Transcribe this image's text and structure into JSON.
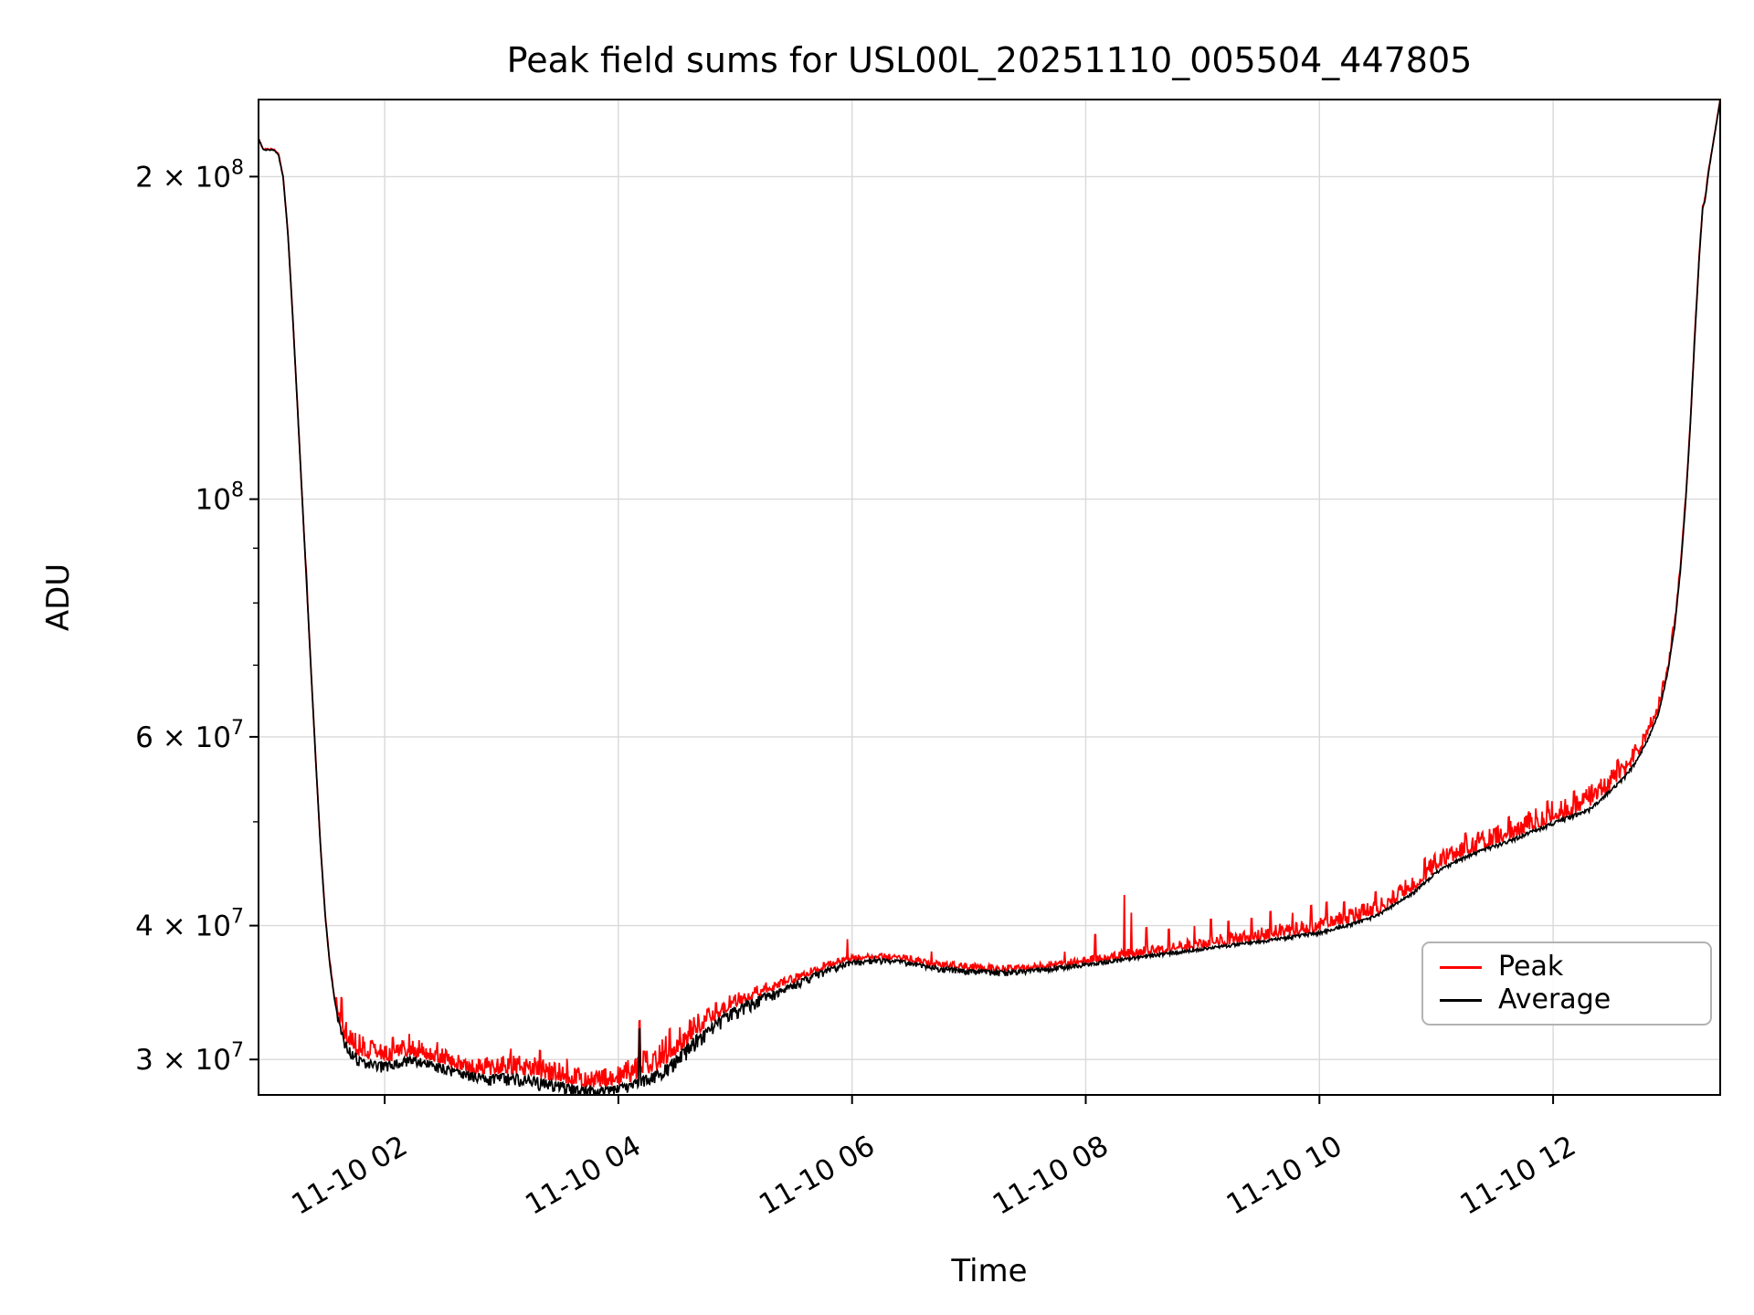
{
  "chart_data": {
    "type": "line",
    "title": "Peak field sums for USL00L_20251110_005504_447805",
    "xlabel": "Time",
    "ylabel": "ADU",
    "yscale": "log",
    "grid": true,
    "legend_position": "lower right",
    "ylim": [
      27800000.0,
      236000000.0
    ],
    "x_range_hours": [
      0.92,
      13.43
    ],
    "sample_step_hours": 0.006,
    "colors": {
      "grid": "#d9d9d9",
      "axis": "#000000",
      "background": "#ffffff",
      "peak": "#ff0000",
      "average": "#000000"
    },
    "x_ticks": [
      {
        "hours": 2,
        "label": "11-10 02"
      },
      {
        "hours": 4,
        "label": "11-10 04"
      },
      {
        "hours": 6,
        "label": "11-10 06"
      },
      {
        "hours": 8,
        "label": "11-10 08"
      },
      {
        "hours": 10,
        "label": "11-10 10"
      },
      {
        "hours": 12,
        "label": "11-10 12"
      }
    ],
    "y_ticks": [
      {
        "value": 30000000.0,
        "mantissa": "3 × 10",
        "exponent": "7"
      },
      {
        "value": 40000000.0,
        "mantissa": "4 × 10",
        "exponent": "7"
      },
      {
        "value": 60000000.0,
        "mantissa": "6 × 10",
        "exponent": "7"
      },
      {
        "value": 100000000.0,
        "mantissa": "10",
        "exponent": "8"
      },
      {
        "value": 200000000.0,
        "mantissa": "2 × 10",
        "exponent": "8"
      }
    ],
    "y_minor_ticks": [
      50000000.0,
      70000000.0,
      80000000.0,
      90000000.0
    ],
    "series": [
      {
        "name": "Peak",
        "color": "#ff0000"
      },
      {
        "name": "Average",
        "color": "#000000"
      }
    ],
    "baseline": {
      "x": [
        0.92,
        0.96,
        1.0,
        1.05,
        1.09,
        1.13,
        1.17,
        1.21,
        1.25,
        1.29,
        1.33,
        1.37,
        1.41,
        1.45,
        1.49,
        1.53,
        1.57,
        1.61,
        1.66,
        1.72,
        1.8,
        1.9,
        2.0,
        2.1,
        2.2,
        2.3,
        2.4,
        2.5,
        2.6,
        2.7,
        2.8,
        2.9,
        3.0,
        3.1,
        3.2,
        3.3,
        3.4,
        3.5,
        3.6,
        3.7,
        3.8,
        3.9,
        4.0,
        4.1,
        4.2,
        4.35,
        4.5,
        4.65,
        4.8,
        4.95,
        5.1,
        5.25,
        5.4,
        5.6,
        5.8,
        6.0,
        6.2,
        6.45,
        6.7,
        7.0,
        7.3,
        7.6,
        8.0,
        8.4,
        8.8,
        9.2,
        9.6,
        10.0,
        10.3,
        10.5,
        10.65,
        10.8,
        11.0,
        11.2,
        11.4,
        11.6,
        11.8,
        12.0,
        12.15,
        12.3,
        12.4,
        12.5,
        12.6,
        12.7,
        12.8,
        12.9,
        12.98,
        13.04,
        13.09,
        13.13,
        13.17,
        13.21,
        13.25,
        13.28,
        13.3,
        13.33,
        13.37,
        13.4,
        13.43
      ],
      "y": [
        217000000.0,
        212000000.0,
        212000000.0,
        212000000.0,
        210000000.0,
        200000000.0,
        178000000.0,
        150000000.0,
        124000000.0,
        102000000.0,
        84000000.0,
        69000000.0,
        57000000.0,
        47500000.0,
        41000000.0,
        36800000.0,
        34200000.0,
        32500000.0,
        31300000.0,
        30600000.0,
        30100000.0,
        29900000.0,
        29800000.0,
        30000000.0,
        30200000.0,
        30100000.0,
        29900000.0,
        29700000.0,
        29400000.0,
        29200000.0,
        29100000.0,
        29000000.0,
        29100000.0,
        29100000.0,
        29000000.0,
        28900000.0,
        28700000.0,
        28600000.0,
        28400000.0,
        28300000.0,
        28200000.0,
        28300000.0,
        28400000.0,
        28600000.0,
        28900000.0,
        29400000.0,
        30300000.0,
        31500000.0,
        32500000.0,
        33400000.0,
        34000000.0,
        34600000.0,
        35000000.0,
        35800000.0,
        36600000.0,
        37100000.0,
        37300000.0,
        37100000.0,
        36700000.0,
        36400000.0,
        36300000.0,
        36500000.0,
        36900000.0,
        37400000.0,
        37900000.0,
        38400000.0,
        38900000.0,
        39500000.0,
        40300000.0,
        41000000.0,
        42000000.0,
        43000000.0,
        45000000.0,
        46200000.0,
        47200000.0,
        48000000.0,
        49000000.0,
        50000000.0,
        50700000.0,
        51400000.0,
        52500000.0,
        53700000.0,
        55000000.0,
        56800000.0,
        59500000.0,
        63000000.0,
        69000000.0,
        76000000.0,
        86000000.0,
        98000000.0,
        115000000.0,
        140000000.0,
        168000000.0,
        187000000.0,
        190000000.0,
        202000000.0,
        215000000.0,
        225000000.0,
        236000000.0
      ]
    },
    "avg_noise": {
      "x": [
        0.92,
        1.55,
        1.65,
        1.8,
        2.1,
        2.4,
        2.7,
        3.0,
        3.4,
        3.8,
        4.1,
        4.4,
        4.7,
        5.0,
        5.4,
        5.8,
        6.3,
        6.8,
        7.3,
        7.8,
        8.3,
        9.0,
        9.7,
        10.4,
        11.0,
        11.6,
        12.2,
        12.7,
        13.0,
        13.2,
        13.43
      ],
      "amp": [
        0.002,
        0.003,
        0.02,
        0.025,
        0.02,
        0.022,
        0.018,
        0.025,
        0.028,
        0.025,
        0.022,
        0.03,
        0.035,
        0.028,
        0.022,
        0.015,
        0.011,
        0.013,
        0.012,
        0.009,
        0.008,
        0.007,
        0.007,
        0.007,
        0.007,
        0.008,
        0.009,
        0.007,
        0.004,
        0.002,
        0.002
      ]
    },
    "peak_noise": {
      "x": [
        0.92,
        1.5,
        1.62,
        1.75,
        2.0,
        2.3,
        2.6,
        2.9,
        3.2,
        3.5,
        3.8,
        4.05,
        4.25,
        4.5,
        4.8,
        5.1,
        5.5,
        6.0,
        6.5,
        7.0,
        7.5,
        8.0,
        8.5,
        9.0,
        9.5,
        10.0,
        10.5,
        11.0,
        11.5,
        12.0,
        12.4,
        12.8,
        13.05,
        13.25,
        13.43
      ],
      "amp": [
        0.002,
        0.003,
        0.04,
        0.055,
        0.04,
        0.04,
        0.032,
        0.04,
        0.045,
        0.05,
        0.04,
        0.05,
        0.065,
        0.06,
        0.04,
        0.025,
        0.018,
        0.012,
        0.012,
        0.014,
        0.012,
        0.015,
        0.02,
        0.025,
        0.03,
        0.032,
        0.035,
        0.04,
        0.042,
        0.048,
        0.05,
        0.035,
        0.02,
        0.008,
        0.004
      ]
    },
    "peak_spikes": [
      [
        1.33,
        0.015
      ],
      [
        1.63,
        0.07
      ],
      [
        2.07,
        0.05
      ],
      [
        2.21,
        0.05
      ],
      [
        2.45,
        0.045
      ],
      [
        3.08,
        0.055
      ],
      [
        3.33,
        0.06
      ],
      [
        3.56,
        0.055
      ],
      [
        4.18,
        0.13
      ],
      [
        4.44,
        0.07
      ],
      [
        5.96,
        0.05
      ],
      [
        6.68,
        0.03
      ],
      [
        7.82,
        0.03
      ],
      [
        8.08,
        0.06
      ],
      [
        8.33,
        0.145
      ],
      [
        8.39,
        0.1
      ],
      [
        8.52,
        0.06
      ],
      [
        8.71,
        0.05
      ],
      [
        8.93,
        0.05
      ],
      [
        9.07,
        0.06
      ],
      [
        9.22,
        0.05
      ],
      [
        9.42,
        0.05
      ],
      [
        9.58,
        0.06
      ],
      [
        9.77,
        0.05
      ],
      [
        9.93,
        0.06
      ],
      [
        10.06,
        0.06
      ],
      [
        10.21,
        0.05
      ],
      [
        10.48,
        0.05
      ],
      [
        10.9,
        0.05
      ],
      [
        11.25,
        0.05
      ],
      [
        11.62,
        0.05
      ],
      [
        11.95,
        0.05
      ],
      [
        12.18,
        0.05
      ],
      [
        12.55,
        0.05
      ]
    ],
    "avg_spikes": [
      [
        4.18,
        0.11
      ]
    ]
  }
}
